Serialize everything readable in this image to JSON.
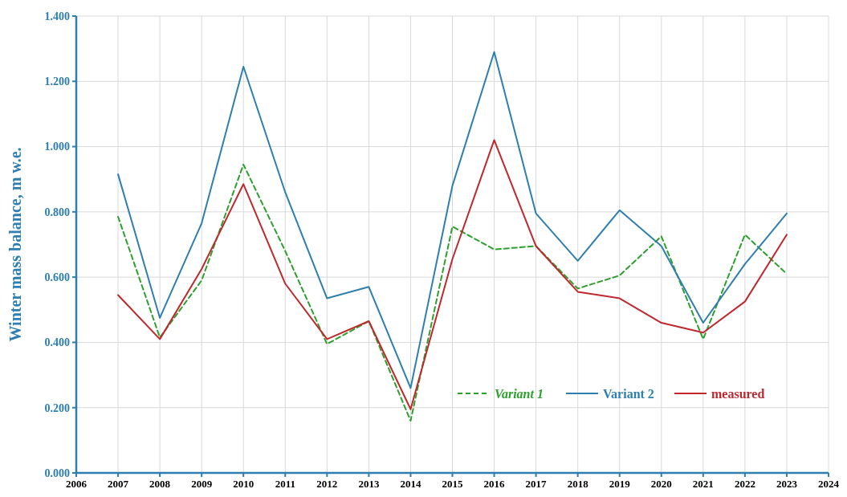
{
  "chart_data": {
    "type": "line",
    "ylabel": "Winter mass balance, m w.e.",
    "x": [
      2007,
      2008,
      2009,
      2010,
      2011,
      2012,
      2013,
      2014,
      2015,
      2016,
      2017,
      2018,
      2019,
      2020,
      2021,
      2022,
      2023
    ],
    "series": [
      {
        "name": "Variant 1",
        "color": "#2ca02c",
        "line_style": "dashed",
        "values": [
          0.785,
          0.415,
          0.59,
          0.945,
          0.68,
          0.395,
          0.465,
          0.16,
          0.755,
          0.685,
          0.695,
          0.565,
          0.605,
          0.725,
          0.41,
          0.73,
          0.61
        ]
      },
      {
        "name": "Variant 2",
        "color": "#2e7fb0",
        "line_style": "solid",
        "values": [
          0.915,
          0.475,
          0.765,
          1.245,
          0.86,
          0.535,
          0.57,
          0.26,
          0.88,
          1.29,
          0.795,
          0.65,
          0.805,
          0.695,
          0.46,
          0.64,
          0.795
        ]
      },
      {
        "name": "measured",
        "color": "#c0282d",
        "line_style": "solid",
        "values": [
          0.545,
          0.41,
          0.625,
          0.885,
          0.58,
          0.41,
          0.465,
          0.195,
          0.655,
          1.02,
          0.695,
          0.555,
          0.535,
          0.46,
          0.43,
          0.525,
          0.73
        ]
      }
    ],
    "xlim": [
      2006,
      2024
    ],
    "xticks": [
      2006,
      2007,
      2008,
      2009,
      2010,
      2011,
      2012,
      2013,
      2014,
      2015,
      2016,
      2017,
      2018,
      2019,
      2020,
      2021,
      2022,
      2023,
      2024
    ],
    "ylim": [
      0,
      1.4
    ],
    "yticks": [
      {
        "value": 0,
        "label": "0.000"
      },
      {
        "value": 0.2,
        "label": "0.200"
      },
      {
        "value": 0.4,
        "label": "0.400"
      },
      {
        "value": 0.6,
        "label": "0.600"
      },
      {
        "value": 0.8,
        "label": "0.800"
      },
      {
        "value": 1,
        "label": "1.000"
      },
      {
        "value": 1.2,
        "label": "1.200"
      },
      {
        "value": 1.4,
        "label": "1.400"
      }
    ],
    "grid": true,
    "legend": "bottom right",
    "marker": "none"
  }
}
